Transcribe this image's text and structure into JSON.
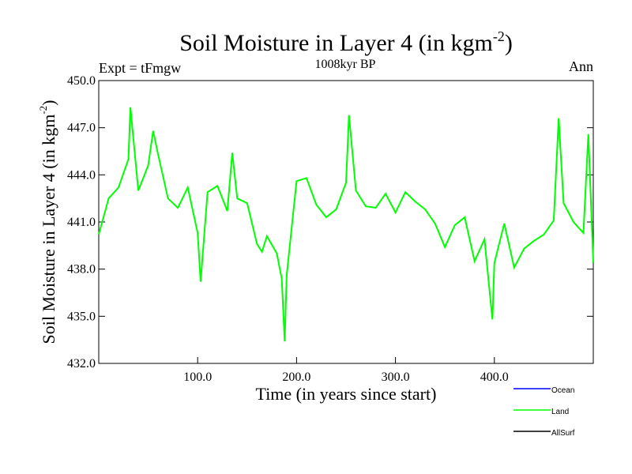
{
  "chart_data": {
    "type": "line",
    "title": "Soil Moisture in Layer 4 (in kgm",
    "title_sup": "-2",
    "title_close": ")",
    "subtitle": "1008kyr BP",
    "left_label": "Expt = tFmgw",
    "right_label": "Ann",
    "xlabel": "Time (in years since start)",
    "ylabel": "Soil Moisture in Layer 4 (in kgm",
    "ylabel_sup": "-2",
    "ylabel_close": ")",
    "xlim": [
      0,
      500
    ],
    "ylim": [
      432.0,
      450.0
    ],
    "x_ticks": [
      "100.0",
      "200.0",
      "300.0",
      "400.0"
    ],
    "y_ticks": [
      "432.0",
      "435.0",
      "438.0",
      "441.0",
      "444.0",
      "447.0",
      "450.0"
    ],
    "colors": {
      "ocean": "#0000ff",
      "land": "#00ff00",
      "allsurf": "#000000"
    },
    "legend": [
      {
        "name": "Ocean",
        "color": "#0000ff"
      },
      {
        "name": "Land",
        "color": "#00ff00"
      },
      {
        "name": "AllSurf",
        "color": "#000000"
      }
    ],
    "series": [
      {
        "name": "Land",
        "color": "#00ff00",
        "x": [
          0,
          10,
          20,
          30,
          32,
          40,
          50,
          55,
          60,
          70,
          80,
          90,
          100,
          103,
          110,
          120,
          130,
          135,
          140,
          150,
          160,
          165,
          170,
          180,
          185,
          188,
          190,
          200,
          210,
          220,
          230,
          240,
          250,
          253,
          260,
          270,
          280,
          290,
          300,
          310,
          320,
          330,
          340,
          350,
          360,
          370,
          380,
          390,
          398,
          400,
          410,
          420,
          430,
          440,
          450,
          460,
          465,
          470,
          480,
          490,
          495,
          500
        ],
        "values": [
          440.2,
          442.5,
          443.2,
          445.0,
          448.3,
          443.0,
          444.6,
          446.8,
          445.3,
          442.5,
          441.9,
          443.2,
          440.3,
          437.2,
          442.9,
          443.3,
          441.7,
          445.4,
          442.5,
          442.2,
          439.6,
          439.1,
          440.1,
          439.0,
          437.4,
          433.4,
          437.6,
          443.6,
          443.8,
          442.1,
          441.3,
          441.8,
          443.5,
          447.8,
          443.0,
          442.0,
          441.9,
          442.8,
          441.6,
          442.9,
          442.3,
          441.8,
          440.9,
          439.4,
          440.8,
          441.3,
          438.5,
          439.9,
          434.8,
          438.4,
          440.9,
          438.1,
          439.3,
          439.8,
          440.2,
          441.1,
          447.6,
          442.2,
          441.0,
          440.3,
          446.6,
          438.4
        ]
      }
    ]
  }
}
